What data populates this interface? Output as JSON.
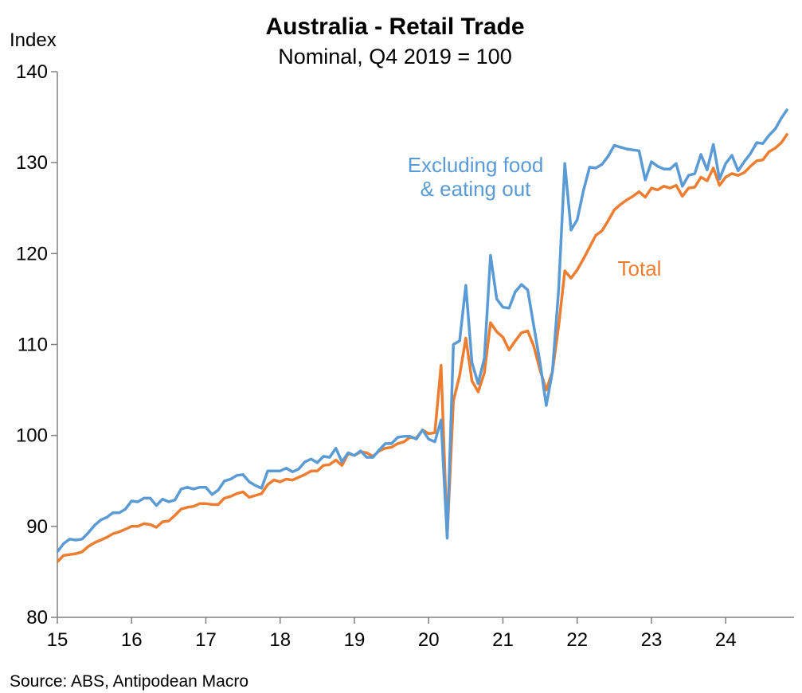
{
  "chart_data": {
    "type": "line",
    "title": "Australia - Retail Trade",
    "subtitle": "Nominal, Q4 2019 = 100",
    "ylabel": "Index",
    "xlabel": "",
    "source": "Source: ABS, Antipodean Macro",
    "ylim": [
      80,
      140
    ],
    "yticks": [
      80,
      90,
      100,
      110,
      120,
      130,
      140
    ],
    "xlim": [
      2015.0,
      2024.92
    ],
    "xticks": [
      {
        "value": 2015,
        "label": "15"
      },
      {
        "value": 2016,
        "label": "16"
      },
      {
        "value": 2017,
        "label": "17"
      },
      {
        "value": 2018,
        "label": "18"
      },
      {
        "value": 2019,
        "label": "19"
      },
      {
        "value": 2020,
        "label": "20"
      },
      {
        "value": 2021,
        "label": "21"
      },
      {
        "value": 2022,
        "label": "22"
      },
      {
        "value": 2023,
        "label": "23"
      },
      {
        "value": 2024,
        "label": "24"
      }
    ],
    "colors": {
      "excluding": "#5B9BD5",
      "total": "#ED7D31"
    },
    "annotations": [
      {
        "series": "excluding",
        "lines": [
          "Excluding food",
          "& eating out"
        ]
      },
      {
        "series": "total",
        "lines": [
          "Total"
        ]
      }
    ],
    "x_start": "2015-01",
    "frequency": "monthly",
    "series": [
      {
        "key": "excluding",
        "values": [
          87.2,
          88.1,
          88.6,
          88.5,
          88.6,
          89.3,
          90.1,
          90.7,
          91.0,
          91.5,
          91.5,
          91.9,
          92.8,
          92.7,
          93.1,
          93.1,
          92.3,
          93.0,
          92.7,
          92.9,
          94.1,
          94.3,
          94.1,
          94.3,
          94.3,
          93.5,
          94.0,
          95.0,
          95.2,
          95.6,
          95.7,
          94.9,
          94.5,
          94.2,
          96.1,
          96.1,
          96.1,
          96.4,
          96.0,
          96.3,
          97.1,
          97.4,
          97.0,
          97.7,
          97.6,
          98.6,
          97.1,
          98.1,
          97.8,
          98.3,
          97.6,
          97.6,
          98.4,
          99.1,
          99.1,
          99.8,
          99.9,
          99.9,
          99.6,
          100.6,
          99.6,
          99.3,
          101.7,
          88.7,
          110.0,
          110.4,
          116.5,
          108.0,
          105.7,
          108.5,
          119.8,
          115.0,
          114.1,
          114.0,
          115.8,
          116.6,
          116.0,
          112.0,
          108.0,
          103.3,
          107.0,
          116.0,
          129.9,
          122.6,
          123.7,
          126.9,
          129.5,
          129.4,
          129.8,
          130.7,
          131.9,
          131.7,
          131.5,
          131.4,
          131.3,
          128.1,
          130.1,
          129.6,
          129.3,
          129.3,
          129.9,
          127.4,
          128.6,
          128.8,
          130.9,
          129.2,
          132.0,
          128.2,
          129.9,
          130.8,
          129.1,
          130.1,
          131.0,
          132.2,
          132.1,
          133.0,
          133.7,
          134.9,
          135.9
        ]
      },
      {
        "key": "total",
        "values": [
          86.1,
          86.8,
          86.9,
          87.0,
          87.2,
          87.8,
          88.2,
          88.5,
          88.8,
          89.2,
          89.4,
          89.7,
          90.0,
          90.0,
          90.3,
          90.2,
          89.9,
          90.5,
          90.6,
          91.2,
          91.9,
          92.1,
          92.2,
          92.5,
          92.5,
          92.4,
          92.4,
          93.1,
          93.3,
          93.6,
          93.8,
          93.2,
          93.4,
          93.6,
          94.6,
          95.1,
          94.9,
          95.2,
          95.1,
          95.4,
          95.7,
          96.1,
          96.1,
          96.7,
          96.8,
          97.3,
          96.7,
          98.0,
          97.8,
          98.2,
          98.1,
          97.7,
          98.3,
          98.6,
          98.7,
          99.1,
          99.3,
          99.8,
          99.7,
          100.6,
          100.2,
          100.3,
          107.7,
          88.9,
          103.8,
          106.6,
          110.7,
          106.0,
          104.8,
          106.9,
          112.4,
          111.4,
          110.8,
          109.4,
          110.4,
          111.3,
          111.5,
          109.8,
          107.2,
          105.0,
          107.0,
          112.0,
          118.1,
          117.3,
          118.2,
          119.4,
          120.7,
          122.0,
          122.5,
          123.6,
          124.8,
          125.4,
          125.9,
          126.3,
          126.8,
          126.2,
          127.2,
          127.0,
          127.4,
          127.2,
          127.5,
          126.3,
          127.2,
          127.3,
          128.4,
          128.0,
          129.4,
          127.5,
          128.4,
          128.8,
          128.6,
          128.9,
          129.6,
          130.2,
          130.3,
          131.2,
          131.6,
          132.2,
          133.2
        ]
      }
    ]
  }
}
